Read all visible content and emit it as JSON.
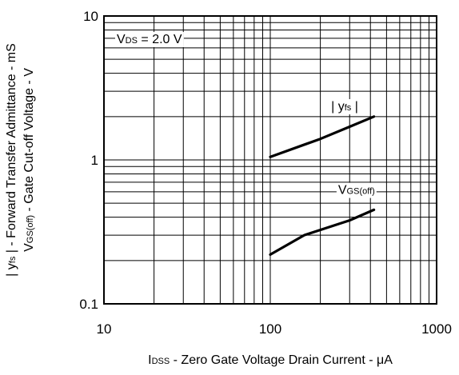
{
  "chart_data": {
    "type": "line",
    "xscale": "log",
    "yscale": "log",
    "xlim": [
      10,
      1000
    ],
    "ylim": [
      0.1,
      10
    ],
    "grid": true,
    "x_ticks": [
      "10",
      "100",
      "1000"
    ],
    "y_ticks": [
      "10",
      "1",
      "0.1"
    ],
    "xlabel": {
      "pre": "I",
      "sub": "DSS",
      "post": " - Zero Gate Voltage Drain Current - μA"
    },
    "ylabel_line1": {
      "pre": "| y",
      "sub": "fs",
      "post": " | - Forward Transfer Admittance - mS"
    },
    "ylabel_line2": {
      "pre": "V",
      "sub": "GS(off)",
      "post": " - Gate Cut-off Voltage - V"
    },
    "condition": {
      "pre": "V",
      "sub": "DS",
      "post": " = 2.0 V"
    },
    "series": [
      {
        "name": "| yfs |",
        "label": {
          "pre": "| y",
          "sub": "fs",
          "post": " |"
        },
        "points": [
          [
            100,
            1.05
          ],
          [
            200,
            1.4
          ],
          [
            300,
            1.7
          ],
          [
            420,
            2.0
          ]
        ]
      },
      {
        "name": "VGS(off)",
        "label": {
          "pre": "V",
          "sub": "GS(off)",
          "post": ""
        },
        "points": [
          [
            100,
            0.22
          ],
          [
            160,
            0.3
          ],
          [
            300,
            0.38
          ],
          [
            420,
            0.45
          ]
        ]
      }
    ],
    "colors": {
      "line": "#000000",
      "grid": "#000000",
      "background": "#ffffff"
    }
  }
}
